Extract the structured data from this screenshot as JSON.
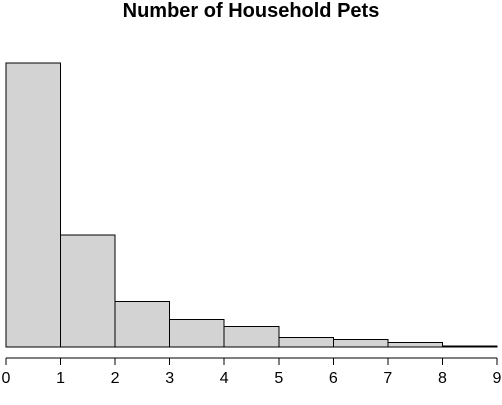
{
  "chart_data": {
    "type": "bar",
    "title": "Number of Household Pets",
    "xlabel": "",
    "ylabel": "",
    "bin_edges": [
      0,
      1,
      2,
      3,
      4,
      5,
      6,
      7,
      8,
      9
    ],
    "values": [
      100,
      39.5,
      16,
      9.6,
      7.2,
      3.4,
      2.6,
      1.6,
      0.3
    ],
    "xlim": [
      0,
      9
    ],
    "ylim": [
      0,
      100
    ],
    "x_ticks": [
      "0",
      "1",
      "2",
      "3",
      "4",
      "5",
      "6",
      "7",
      "8",
      "9"
    ],
    "grid": false,
    "legend": "none",
    "colors": {
      "bar_fill": "#d3d3d3",
      "bar_stroke": "#000000",
      "axis": "#000000",
      "text": "#000000"
    }
  }
}
